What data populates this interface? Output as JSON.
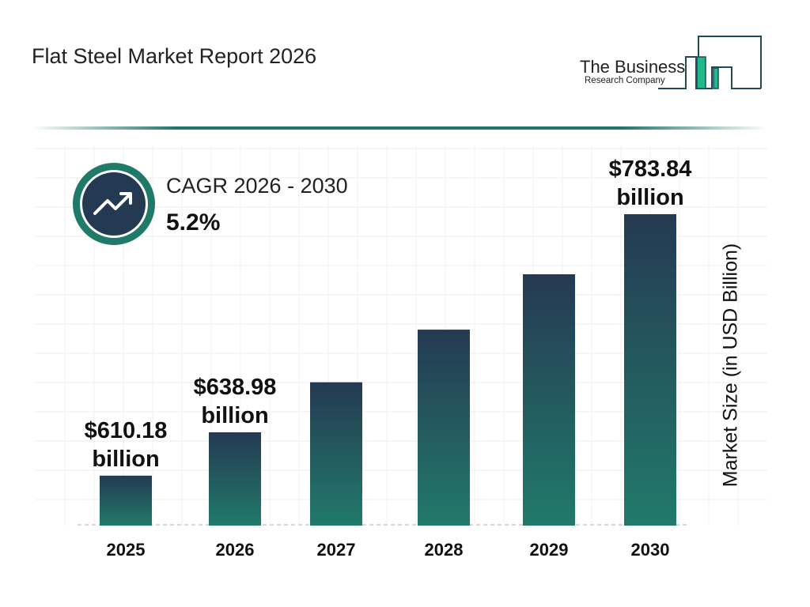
{
  "header": {
    "title": "Flat Steel Market Report 2026"
  },
  "logo": {
    "line1": "The Business",
    "line2": "Research Company"
  },
  "cagr": {
    "label": "CAGR 2026 - 2030",
    "value": "5.2%",
    "icon": "trend-up-icon"
  },
  "colors": {
    "bar_top": "#253a52",
    "bar_bottom": "#217a6b",
    "accent": "#1f7566",
    "logo_green": "#21b98a"
  },
  "chart_data": {
    "type": "bar",
    "categories": [
      "2025",
      "2026",
      "2027",
      "2028",
      "2029",
      "2030"
    ],
    "values": [
      610.18,
      638.98,
      672.21,
      707.16,
      743.93,
      783.84
    ],
    "data_labels": [
      "$610.18 billion",
      "$638.98 billion",
      "",
      "",
      "",
      "$783.84 billion"
    ],
    "ylabel": "Market Size (in USD Billion)",
    "xlabel": "",
    "grid": true,
    "unit": "USD billion"
  }
}
